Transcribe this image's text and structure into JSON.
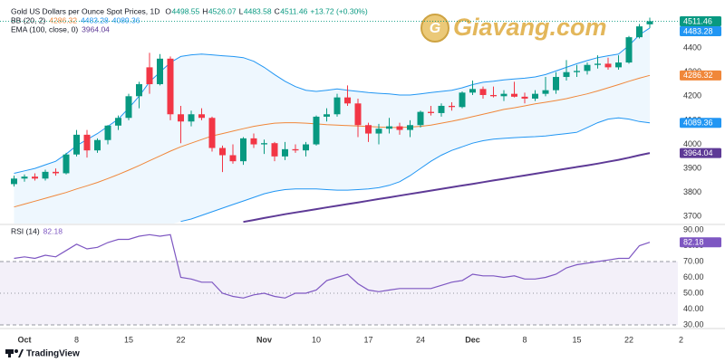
{
  "chart_data": {
    "type": "candlestick",
    "title": "Gold US Dollars per Ounce Spot Prices, 1D",
    "ohlc_prefixes": [
      "O",
      "H",
      "L",
      "C"
    ],
    "change": "+13.72 (+0.30%)",
    "watermark": "Giavang.com",
    "footer": "TradingView",
    "up_color": "#089981",
    "down_color": "#f23645",
    "categories": [
      null,
      "Oct",
      null,
      null,
      null,
      null,
      "8",
      null,
      null,
      null,
      null,
      "15",
      null,
      null,
      null,
      null,
      "22",
      null,
      null,
      null,
      null,
      null,
      null,
      null,
      "Nov",
      null,
      null,
      null,
      null,
      "10",
      null,
      null,
      null,
      null,
      "17",
      null,
      null,
      null,
      null,
      "24",
      null,
      null,
      null,
      null,
      "Dec",
      null,
      null,
      null,
      null,
      "8",
      null,
      null,
      null,
      null,
      "15",
      null,
      null,
      null,
      null,
      "22",
      null,
      null,
      null,
      null,
      "2"
    ],
    "open": [
      3835,
      3858,
      3866,
      3858,
      3886,
      3880,
      3958,
      4040,
      3975,
      4018,
      4078,
      4110,
      4200,
      4320,
      4250,
      4356,
      4125,
      4095,
      4125,
      4110,
      3985,
      3955,
      3930,
      4025,
      4000,
      4005,
      3950,
      3980,
      3975,
      4000,
      4115,
      4125,
      4195,
      4170,
      4080,
      4045,
      4065,
      4075,
      4060,
      4080,
      4135,
      4130,
      4160,
      4155,
      4215,
      4230,
      4205,
      4200,
      4210,
      4198,
      4190,
      4210,
      4225,
      4280,
      4300,
      4305,
      4330,
      4335,
      4320,
      4340,
      4445,
      4498.55,
      null,
      null,
      null
    ],
    "high": [
      3870,
      3875,
      3880,
      3895,
      3900,
      3965,
      4060,
      4060,
      4025,
      4080,
      4120,
      4210,
      4260,
      4380,
      4375,
      4365,
      4160,
      4140,
      4150,
      4115,
      3995,
      4000,
      4030,
      4045,
      4020,
      4010,
      4010,
      4000,
      4010,
      4120,
      4150,
      4210,
      4245,
      4190,
      4090,
      4085,
      4110,
      4090,
      4100,
      4140,
      4160,
      4170,
      4175,
      4220,
      4265,
      4240,
      4240,
      4225,
      4260,
      4215,
      4225,
      4280,
      4300,
      4350,
      4330,
      4340,
      4370,
      4360,
      4370,
      4450,
      4500,
      4526.07,
      null,
      null,
      null
    ],
    "low": [
      3825,
      3845,
      3850,
      3850,
      3870,
      3875,
      3950,
      3945,
      3965,
      4000,
      4060,
      4100,
      4150,
      4210,
      4245,
      4100,
      4005,
      4075,
      4100,
      3970,
      3885,
      3920,
      3915,
      3985,
      3960,
      3930,
      3935,
      3965,
      3950,
      3995,
      4095,
      4115,
      4160,
      4030,
      4010,
      4000,
      4045,
      4040,
      4030,
      4070,
      4120,
      4115,
      4140,
      4150,
      4205,
      4190,
      4195,
      4180,
      4195,
      4170,
      4180,
      4200,
      4210,
      4265,
      4280,
      4290,
      4315,
      4310,
      4310,
      4335,
      4440,
      4483.58,
      null,
      null,
      null
    ],
    "close": [
      3858,
      3866,
      3858,
      3886,
      3880,
      3958,
      4040,
      3975,
      4018,
      4078,
      4110,
      4200,
      4250,
      4250,
      4356,
      4125,
      4095,
      4125,
      4110,
      3985,
      3955,
      3930,
      4025,
      4000,
      4005,
      3950,
      3980,
      3975,
      4000,
      4115,
      4125,
      4195,
      4170,
      4080,
      4045,
      4065,
      4075,
      4060,
      4080,
      4135,
      4130,
      4160,
      4155,
      4215,
      4230,
      4205,
      4200,
      4210,
      4198,
      4190,
      4210,
      4225,
      4280,
      4300,
      4305,
      4330,
      4335,
      4320,
      4340,
      4445,
      4490,
      4511.46,
      null,
      null,
      null
    ],
    "ylim": [
      3675,
      4562
    ],
    "yticks": [
      3700,
      3800,
      3900,
      4000,
      4100,
      4200,
      4300,
      4400,
      4500
    ],
    "bb": {
      "name": "BB (20, 2)",
      "fill": "rgba(33,150,243,0.08)",
      "series": [
        {
          "color": "#f0873a",
          "values": [
            3740,
            3752,
            3764,
            3776,
            3788,
            3800,
            3815,
            3828,
            3842,
            3858,
            3875,
            3893,
            3912,
            3932,
            3952,
            3972,
            3990,
            4005,
            4020,
            4035,
            4045,
            4055,
            4065,
            4075,
            4082,
            4088,
            4090,
            4090,
            4088,
            4085,
            4082,
            4080,
            4078,
            4076,
            4074,
            4072,
            4070,
            4070,
            4072,
            4075,
            4080,
            4088,
            4096,
            4105,
            4115,
            4125,
            4135,
            4145,
            4152,
            4160,
            4168,
            4175,
            4182,
            4190,
            4200,
            4210,
            4222,
            4235,
            4248,
            4262,
            4275,
            4286.32,
            null,
            null,
            null
          ]
        },
        {
          "color": "#2196f3",
          "values": [
            3880,
            3890,
            3900,
            3915,
            3930,
            3960,
            3995,
            4020,
            4045,
            4075,
            4105,
            4150,
            4200,
            4260,
            4300,
            4340,
            4365,
            4372,
            4375,
            4372,
            4368,
            4365,
            4360,
            4345,
            4320,
            4290,
            4262,
            4240,
            4225,
            4220,
            4225,
            4230,
            4225,
            4220,
            4215,
            4212,
            4210,
            4205,
            4205,
            4210,
            4215,
            4220,
            4225,
            4235,
            4248,
            4258,
            4262,
            4268,
            4272,
            4275,
            4280,
            4290,
            4305,
            4320,
            4335,
            4348,
            4360,
            4368,
            4375,
            4410,
            4455,
            4483.28,
            null,
            null,
            null
          ]
        },
        {
          "color": "#2196f3",
          "values": [
            null,
            null,
            null,
            null,
            null,
            null,
            null,
            null,
            null,
            null,
            null,
            null,
            null,
            null,
            null,
            null,
            3680,
            3690,
            3705,
            3720,
            3735,
            3750,
            3765,
            3780,
            3795,
            3805,
            3812,
            3815,
            3815,
            3815,
            3812,
            3810,
            3810,
            3812,
            3815,
            3820,
            3830,
            3845,
            3870,
            3900,
            3930,
            3955,
            3975,
            3990,
            4005,
            4015,
            4022,
            4025,
            4028,
            4030,
            4032,
            4035,
            4040,
            4045,
            4050,
            4070,
            4090,
            4105,
            4110,
            4105,
            4095,
            4089.36,
            null,
            null,
            null
          ]
        }
      ]
    },
    "ema": {
      "name": "EMA (100, close, 0)",
      "color": "#5e3a96",
      "values": [
        null,
        null,
        null,
        null,
        null,
        null,
        null,
        null,
        null,
        null,
        null,
        null,
        null,
        null,
        null,
        null,
        null,
        null,
        null,
        null,
        null,
        null,
        3678,
        3686,
        3694,
        3702,
        3710,
        3717,
        3724,
        3731,
        3738,
        3745,
        3752,
        3759,
        3766,
        3773,
        3780,
        3787,
        3794,
        3801,
        3808,
        3815,
        3822,
        3829,
        3836,
        3843,
        3850,
        3857,
        3864,
        3871,
        3878,
        3885,
        3892,
        3899,
        3906,
        3913,
        3920,
        3928,
        3936,
        3945,
        3955,
        3964.04,
        null,
        null,
        null
      ]
    },
    "rsi": {
      "type": "line",
      "name": "RSI (14)",
      "color": "#7e57c2",
      "band_color": "rgba(126,87,194,0.09)",
      "values": [
        72,
        73,
        72,
        74,
        73,
        77,
        81,
        78,
        79,
        82,
        84,
        84,
        86,
        87,
        86,
        87,
        60,
        59,
        57,
        57,
        50,
        48,
        47,
        49,
        50,
        48,
        47,
        50,
        50,
        52,
        58,
        60,
        62,
        56,
        52,
        51,
        52,
        53,
        53,
        53,
        53,
        55,
        57,
        58,
        62,
        61,
        61,
        60,
        61,
        59,
        59,
        60,
        62,
        66,
        68,
        69,
        70,
        71,
        72,
        72,
        80,
        82.18,
        null,
        null,
        null
      ],
      "ylim": [
        28.3,
        92.3
      ],
      "yticks": [
        {
          "value": 30,
          "label": "30.00"
        },
        {
          "value": 40,
          "label": "40.00"
        },
        {
          "value": 50,
          "label": "50.00"
        },
        {
          "value": 60,
          "label": "60.00"
        },
        {
          "value": 70,
          "label": "70.00"
        },
        {
          "value": 80,
          "label": "80.00"
        },
        {
          "value": 90,
          "label": "90.00"
        }
      ],
      "levels": [
        30,
        50,
        70
      ]
    }
  }
}
